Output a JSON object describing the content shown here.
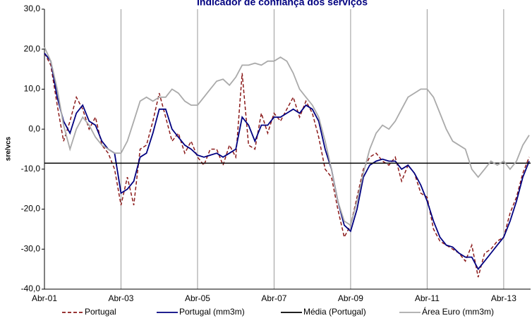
{
  "chart_data": {
    "type": "line",
    "title": "Indicador de confiança dos serviços",
    "y_label": "sre/vcs",
    "categories": [
      "Abr-01",
      null,
      null,
      null,
      null,
      null,
      null,
      null,
      null,
      null,
      null,
      null,
      "Abr-03",
      null,
      null,
      null,
      null,
      null,
      null,
      null,
      null,
      null,
      null,
      null,
      "Abr-05",
      null,
      null,
      null,
      null,
      null,
      null,
      null,
      null,
      null,
      null,
      null,
      "Abr-07",
      null,
      null,
      null,
      null,
      null,
      null,
      null,
      null,
      null,
      null,
      null,
      "Abr-09",
      null,
      null,
      null,
      null,
      null,
      null,
      null,
      null,
      null,
      null,
      null,
      "Abr-11",
      null,
      null,
      null,
      null,
      null,
      null,
      null,
      null,
      null,
      null,
      null,
      "Abr-13",
      null,
      null,
      null,
      null
    ],
    "series": [
      {
        "name": "Portugal",
        "color": "#8b1a1a",
        "dashed": true,
        "values": [
          19,
          16,
          6,
          -3,
          2,
          8,
          5,
          0,
          3,
          -4,
          -6,
          -10,
          -19,
          -12,
          -19,
          -5,
          -4,
          2,
          9,
          3,
          -3,
          -1,
          -6,
          -3,
          -7,
          -9,
          -5,
          -5,
          -9,
          -4,
          -7,
          14,
          -4,
          -5,
          4,
          -1,
          4,
          2,
          5,
          8,
          3,
          7,
          4,
          -2,
          -10,
          -12,
          -20,
          -27,
          -24,
          -17,
          -10,
          -7,
          -6,
          -8,
          -9,
          -7,
          -13,
          -9,
          -11,
          -16,
          -17,
          -25,
          -28,
          -29,
          -30,
          -31,
          -33,
          -29,
          -37,
          -31,
          -30,
          -28,
          -27,
          -21,
          -17,
          -11,
          -7
        ]
      },
      {
        "name": "Portugal (mm3m)",
        "color": "#000080",
        "values": [
          19,
          17,
          8,
          2,
          -1,
          4,
          6,
          2,
          1,
          -3,
          -5,
          -6,
          -16,
          -15,
          -13,
          -7,
          -6,
          -1,
          5,
          5,
          0,
          -2,
          -4,
          -5,
          -6.5,
          -7,
          -6.5,
          -6,
          -7,
          -6,
          -5,
          3,
          1,
          -3,
          1,
          1,
          3,
          3,
          4,
          5,
          4,
          6,
          5,
          2,
          -5,
          -10,
          -18,
          -24,
          -25.5,
          -20,
          -12,
          -9,
          -8,
          -7.5,
          -8,
          -8,
          -10,
          -9,
          -11,
          -14,
          -18,
          -23,
          -27,
          -29,
          -29.5,
          -31,
          -32,
          -32,
          -35,
          -33,
          -31,
          -29,
          -27,
          -23,
          -18,
          -12,
          -8
        ]
      },
      {
        "name": "Média (Portugal)",
        "color": "#000000",
        "value": -8.5
      },
      {
        "name": "Área Euro (mm3m)",
        "color": "#aaaaaa",
        "values": [
          20.5,
          17,
          10,
          1,
          -5,
          0,
          3,
          1,
          -2,
          -4,
          -5,
          -6,
          -6,
          -3,
          2,
          7,
          8,
          7,
          8,
          8,
          10,
          9,
          7,
          6,
          6,
          8,
          10,
          12,
          12.5,
          11,
          13,
          16,
          16,
          16.5,
          16,
          17,
          17,
          18,
          17,
          14,
          10,
          8,
          6,
          3,
          -3,
          -10,
          -18,
          -23,
          -24,
          -18,
          -11,
          -5,
          -1,
          1,
          0,
          2,
          5,
          8,
          9,
          10,
          10,
          8,
          4,
          0,
          -3,
          -4,
          -5,
          -10,
          -12,
          -10,
          -8,
          -9,
          -8,
          -10,
          -8,
          -4,
          -1.5
        ]
      }
    ],
    "ylim": [
      -40,
      30
    ],
    "yticks": [
      {
        "value": -40,
        "label": "-40,0"
      },
      {
        "value": -30,
        "label": "-30,0"
      },
      {
        "value": -20,
        "label": "-20,0"
      },
      {
        "value": -10,
        "label": "-10,0"
      },
      {
        "value": 0,
        "label": "0,0"
      },
      {
        "value": 10,
        "label": "10,0"
      },
      {
        "value": 20,
        "label": "20,0"
      },
      {
        "value": 30,
        "label": "30,0"
      }
    ],
    "grid": true
  }
}
